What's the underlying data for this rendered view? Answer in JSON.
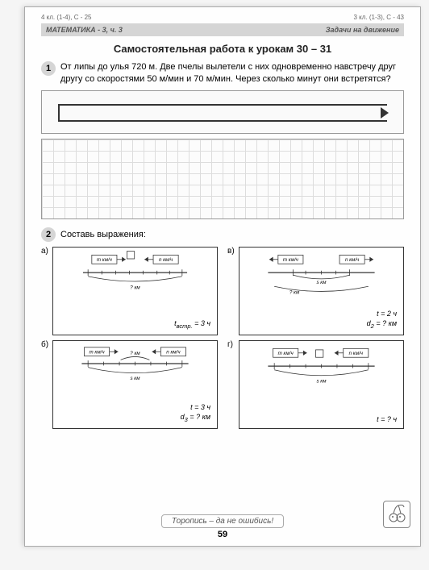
{
  "refs": {
    "left": "4 кл. (1-4), С - 25",
    "right": "3 кл. (1-3), С - 43"
  },
  "header": {
    "left": "МАТЕМАТИКА - 3, ч. 3",
    "right": "Задачи на движение"
  },
  "title": "Самостоятельная работа к урокам 30 – 31",
  "p1_num": "1",
  "p1_text": "От липы до улья 720 м. Две пчелы вылетели с них одно­временно навстречу друг другу со скоростями 50 м/мин и 70 м/мин. Через сколько минут они встретятся?",
  "p2_num": "2",
  "p2_text": "Составь выражения:",
  "panels": {
    "a": {
      "label": "а)",
      "m": "m км/ч",
      "n": "n км/ч",
      "q": "? км",
      "info": "t<sub>встр.</sub> = 3 ч"
    },
    "b": {
      "label": "б)",
      "m": "m км/ч",
      "n": "n км/ч",
      "q": "? км",
      "s": "s км",
      "info": "t = 3 ч<br>d<sub>3</sub> = ? км"
    },
    "v": {
      "label": "в)",
      "m": "m км/ч",
      "n": "n км/ч",
      "q": "? км",
      "s": "s км",
      "info": "t = 2 ч<br>d<sub>2</sub> = ? км"
    },
    "g": {
      "label": "г)",
      "m": "m км/ч",
      "n": "n км/ч",
      "s": "s км",
      "info": "t = ? ч"
    }
  },
  "footer_msg": "Торопись – да не ошибись!",
  "page_num": "59"
}
